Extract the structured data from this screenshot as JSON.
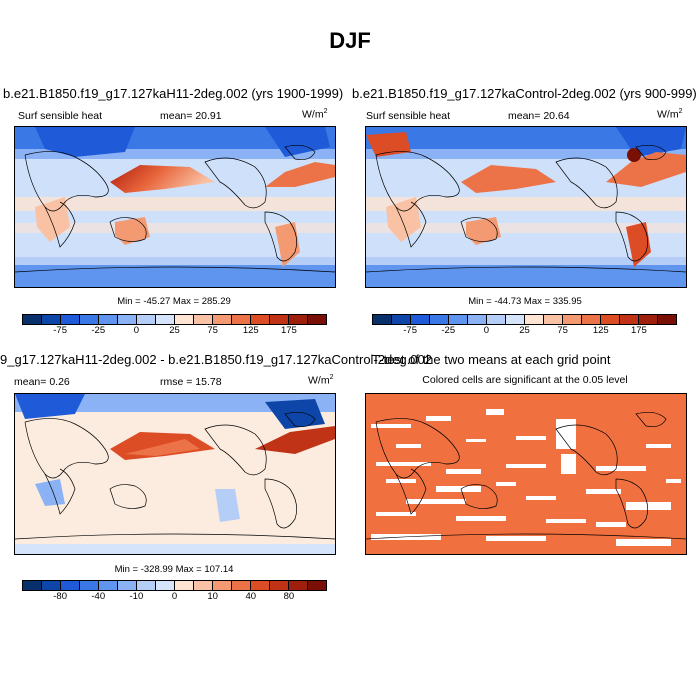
{
  "figure": {
    "title": "DJF"
  },
  "panel_1": {
    "title": "b.e21.B1850.f19_g17.127kaH11-2deg.002 (yrs 1900-1999)",
    "variable": "Surf sensible heat",
    "mean": "mean=  20.91",
    "unit": "W/m",
    "unit_exp": "2",
    "minmax": "Min = -45.27 Max = 285.29",
    "colorbar_ticks": [
      "-75",
      "-25",
      "0",
      "25",
      "75",
      "125",
      "175"
    ]
  },
  "panel_2": {
    "title": "b.e21.B1850.f19_g17.127kaControl-2deg.002 (yrs 900-999)",
    "variable": "Surf sensible heat",
    "mean": "mean=  20.64",
    "unit": "W/m",
    "unit_exp": "2",
    "minmax": "Min = -44.73 Max = 335.95",
    "colorbar_ticks": [
      "-75",
      "-25",
      "0",
      "25",
      "75",
      "125",
      "175"
    ]
  },
  "panel_3": {
    "title": "9_g17.127kaH11-2deg.002 - b.e21.B1850.f19_g17.127kaControl-2deg.002",
    "mean": "mean=  0.26",
    "rmse": "rmse =  15.78",
    "unit": "W/m",
    "unit_exp": "2",
    "minmax": "Min = -328.99 Max = 107.14",
    "colorbar_ticks": [
      "-80",
      "-40",
      "-10",
      "0",
      "10",
      "40",
      "80"
    ]
  },
  "panel_4": {
    "title": "T-test of the two means at each grid point",
    "subtitle": "Colored cells are significant at the 0.05 level"
  },
  "colors": {
    "colorbar": [
      "#08306b",
      "#0d45a8",
      "#1f5bd8",
      "#3a78e6",
      "#5f95ee",
      "#8ab2f4",
      "#b5cef8",
      "#d6e4fb",
      "#fde4d3",
      "#f9c2a4",
      "#f39a73",
      "#ec7348",
      "#dc4c25",
      "#c03316",
      "#9e1f0c",
      "#7a0f05"
    ],
    "significance": "#f07040"
  }
}
